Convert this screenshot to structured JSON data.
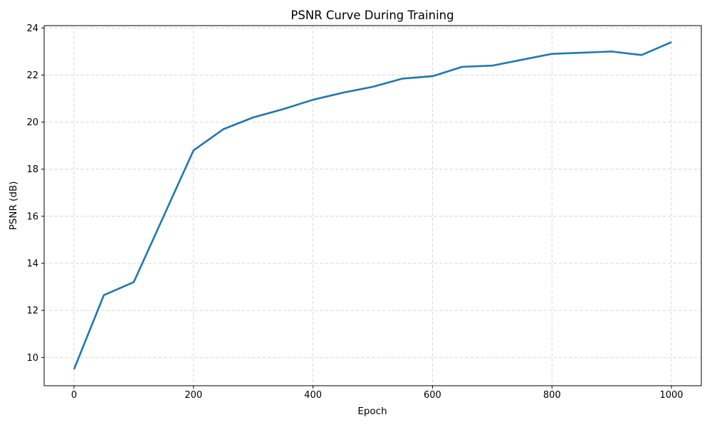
{
  "figure": {
    "title": "PSNR Curve During Training",
    "xlabel": "Epoch",
    "ylabel": "PSNR (dB)",
    "background_color": "#ffffff",
    "spine_color": "#000000",
    "text_color": "#000000"
  },
  "chart_data": {
    "type": "line",
    "title": "PSNR Curve During Training",
    "xlabel": "Epoch",
    "ylabel": "PSNR (dB)",
    "x": [
      0,
      50,
      100,
      150,
      200,
      250,
      300,
      350,
      400,
      450,
      500,
      550,
      600,
      650,
      700,
      750,
      800,
      850,
      900,
      950,
      1000
    ],
    "y": [
      9.5,
      12.65,
      13.2,
      16.0,
      18.8,
      19.7,
      20.2,
      20.55,
      20.95,
      21.25,
      21.5,
      21.85,
      21.95,
      22.35,
      22.4,
      22.65,
      22.9,
      22.95,
      23.0,
      22.85,
      23.4
    ],
    "series": [
      {
        "name": "PSNR",
        "color": "#1f77b4",
        "line_width": 2.6
      }
    ],
    "xlim": [
      -50,
      1050
    ],
    "ylim": [
      8.8,
      24.1
    ],
    "xticks": [
      0,
      200,
      400,
      600,
      800,
      1000
    ],
    "yticks": [
      10,
      12,
      14,
      16,
      18,
      20,
      22,
      24
    ],
    "grid": {
      "visible": true,
      "style": "dashed",
      "color": "#d4d4d4"
    },
    "legend": "none",
    "markers": "none"
  }
}
